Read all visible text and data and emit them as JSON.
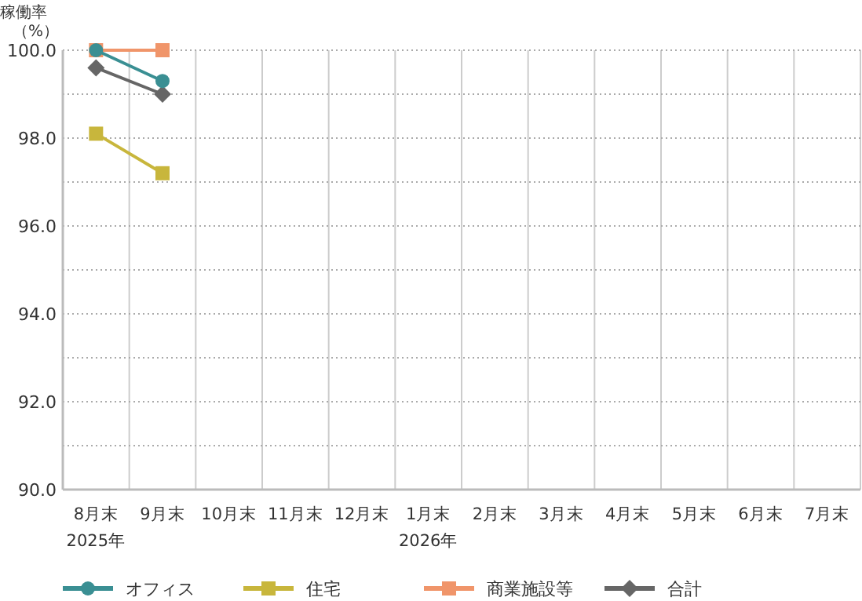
{
  "chart_data": {
    "type": "line",
    "ylabel": "稼働率（%）",
    "categories": [
      "8月末\n2025年",
      "9月末",
      "10月末",
      "11月末",
      "12月末",
      "1月末\n2026年",
      "2月末",
      "3月末",
      "4月末",
      "5月末",
      "6月末",
      "7月末"
    ],
    "ylim": [
      90,
      100
    ],
    "yticks": [
      {
        "value": 90,
        "label": "90.0"
      },
      {
        "value": 91,
        "label": null
      },
      {
        "value": 92,
        "label": "92.0"
      },
      {
        "value": 93,
        "label": null
      },
      {
        "value": 94,
        "label": "94.0"
      },
      {
        "value": 95,
        "label": null
      },
      {
        "value": 96,
        "label": "96.0"
      },
      {
        "value": 97,
        "label": null
      },
      {
        "value": 98,
        "label": "98.0"
      },
      {
        "value": 99,
        "label": null
      },
      {
        "value": 100,
        "label": "100.0"
      }
    ],
    "grid": true,
    "legend": "bottom",
    "line_style": "solid",
    "series": [
      {
        "name": "オフィス",
        "color": "#3a8f93",
        "marker": "circle",
        "values": [
          100.0,
          99.3,
          null,
          null,
          null,
          null,
          null,
          null,
          null,
          null,
          null,
          null
        ]
      },
      {
        "name": "住宅",
        "color": "#c8b63c",
        "marker": "square",
        "values": [
          98.1,
          97.2,
          null,
          null,
          null,
          null,
          null,
          null,
          null,
          null,
          null,
          null
        ]
      },
      {
        "name": "商業施設等",
        "color": "#f0956a",
        "marker": "square",
        "values": [
          100.0,
          100.0,
          null,
          null,
          null,
          null,
          null,
          null,
          null,
          null,
          null,
          null
        ]
      },
      {
        "name": "合計",
        "color": "#666666",
        "marker": "diamond",
        "values": [
          99.6,
          99.0,
          null,
          null,
          null,
          null,
          null,
          null,
          null,
          null,
          null,
          null
        ]
      }
    ]
  }
}
